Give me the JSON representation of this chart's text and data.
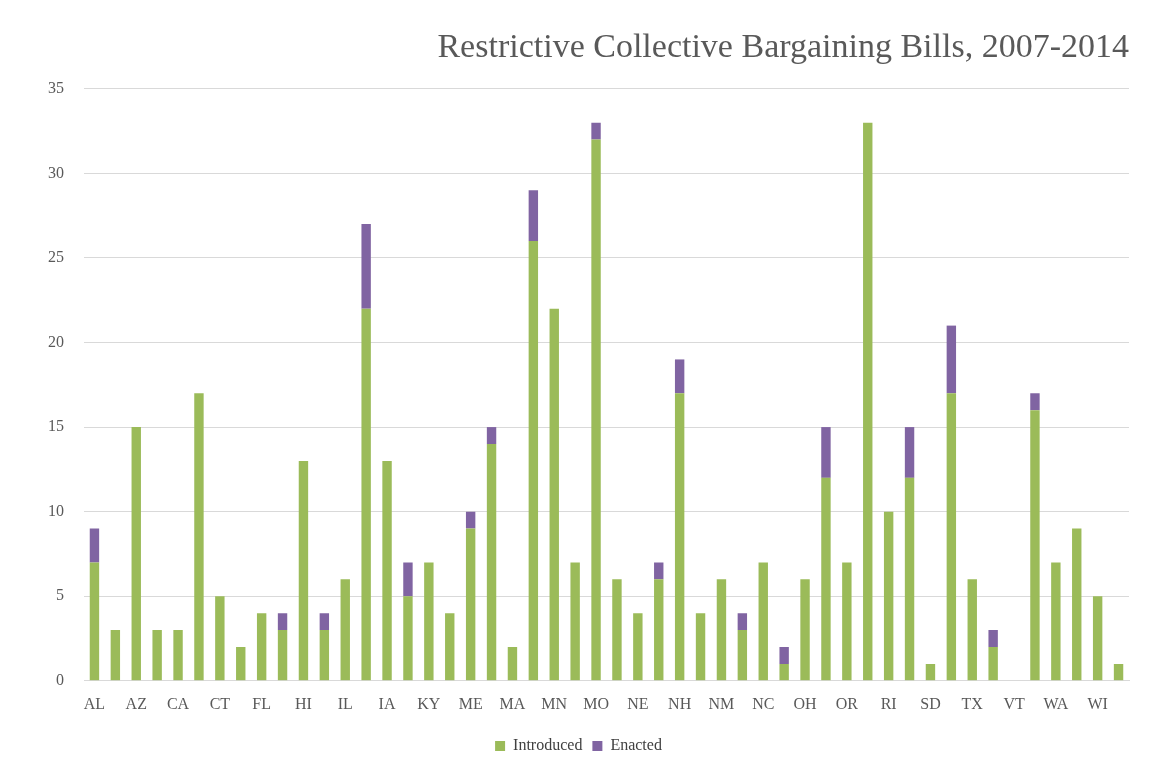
{
  "chart_data": {
    "type": "bar",
    "title": "Restrictive Collective Bargaining Bills, 2007-2014",
    "categories": [
      "AL",
      null,
      "AZ",
      null,
      "CA",
      null,
      "CT",
      null,
      "FL",
      null,
      "HI",
      null,
      "IL",
      null,
      "IA",
      null,
      "KY",
      null,
      "ME",
      null,
      "MA",
      null,
      "MN",
      null,
      "MO",
      null,
      "NE",
      null,
      "NH",
      null,
      "NM",
      null,
      "NC",
      null,
      "OH",
      null,
      "OR",
      null,
      "RI",
      null,
      "SD",
      null,
      "TX",
      null,
      "VT",
      null,
      "WA",
      null,
      "WI",
      null
    ],
    "series": [
      {
        "name": "Introduced",
        "color": "#9bbb59",
        "values": [
          7,
          3,
          15,
          3,
          3,
          17,
          5,
          2,
          4,
          3,
          13,
          3,
          6,
          22,
          13,
          5,
          7,
          4,
          9,
          14,
          2,
          26,
          22,
          7,
          32,
          6,
          4,
          6,
          17,
          4,
          6,
          3,
          7,
          1,
          6,
          12,
          7,
          33,
          10,
          12,
          1,
          17,
          6,
          2,
          0,
          16,
          7,
          9,
          5,
          1
        ]
      },
      {
        "name": "Enacted",
        "color": "#8064a2",
        "values": [
          2,
          0,
          0,
          0,
          0,
          0,
          0,
          0,
          0,
          1,
          0,
          1,
          0,
          5,
          0,
          2,
          0,
          0,
          1,
          1,
          0,
          3,
          0,
          0,
          1,
          0,
          0,
          1,
          2,
          0,
          0,
          1,
          0,
          1,
          0,
          3,
          0,
          0,
          0,
          3,
          0,
          4,
          0,
          1,
          0,
          1,
          0,
          0,
          0,
          0
        ]
      }
    ],
    "stacked": true,
    "ylim": [
      0,
      35
    ],
    "yticks": [
      0,
      5,
      10,
      15,
      20,
      25,
      30,
      35
    ],
    "grid": "y",
    "legend": "bottom"
  }
}
